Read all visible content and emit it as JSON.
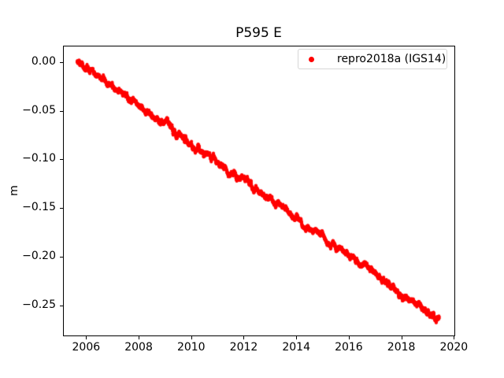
{
  "chart_data": {
    "type": "scatter",
    "title": "P595 E",
    "xlabel": "",
    "ylabel": "m",
    "grid": false,
    "legend_position": "upper right",
    "legend": [
      {
        "label": "repro2018a (IGS14)",
        "color": "#ff0000",
        "marker": "dot"
      }
    ],
    "xlim": [
      2005.15,
      2020.02
    ],
    "ylim": [
      -0.281,
      0.016
    ],
    "xticks": [
      2006,
      2008,
      2010,
      2012,
      2014,
      2016,
      2018,
      2020
    ],
    "xtick_labels": [
      "2006",
      "2008",
      "2010",
      "2012",
      "2014",
      "2016",
      "2018",
      "2020"
    ],
    "yticks": [
      0.0,
      -0.05,
      -0.1,
      -0.15,
      -0.2,
      -0.25
    ],
    "ytick_labels": [
      "0.00",
      "−0.05",
      "−0.10",
      "−0.15",
      "−0.20",
      "−0.25"
    ],
    "series": [
      {
        "name": "repro2018a (IGS14)",
        "color": "#ff0000",
        "marker_radius_px": 2,
        "x_start": 2005.66,
        "x_end": 2019.44,
        "sampling_per_year": 365,
        "noise_sigma_m": 0.0022,
        "slope_m_per_yr": -0.01927,
        "trend_anchors": [
          [
            2005.66,
            0.0
          ],
          [
            2006.0,
            -0.0066
          ],
          [
            2008.0,
            -0.0451
          ],
          [
            2010.0,
            -0.0837
          ],
          [
            2012.0,
            -0.1222
          ],
          [
            2014.0,
            -0.1607
          ],
          [
            2016.0,
            -0.1993
          ],
          [
            2018.0,
            -0.2378
          ],
          [
            2019.44,
            -0.2655
          ]
        ]
      }
    ]
  },
  "colors": {
    "marker": "#ff0000",
    "text": "#000000",
    "spine": "#000000",
    "legend_border": "#d5d5d5",
    "background": "#ffffff"
  }
}
